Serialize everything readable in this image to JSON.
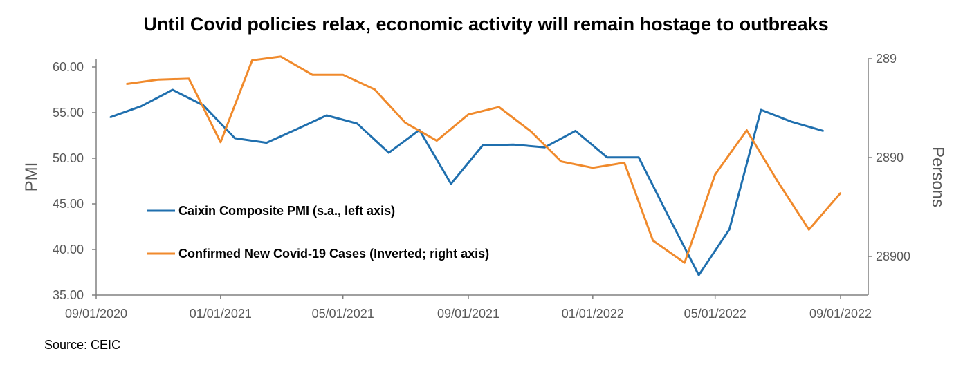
{
  "title": "Until Covid policies relax, economic activity will remain hostage to outbreaks",
  "source": "Source: CEIC",
  "chart_data": {
    "type": "line",
    "title": "Until Covid policies relax, economic activity will remain hostage to outbreaks",
    "xlabel": "",
    "x_ticks": [
      "09/01/2020",
      "01/01/2021",
      "05/01/2021",
      "09/01/2021",
      "01/01/2022",
      "05/01/2022",
      "09/01/2022"
    ],
    "xlim": [
      "2020-09-01",
      "2022-09-01"
    ],
    "left_axis": {
      "label": "PMI",
      "ylim": [
        35,
        60
      ],
      "ticks": [
        "35.00",
        "40.00",
        "45.00",
        "50.00",
        "55.00",
        "60.00"
      ]
    },
    "right_axis": {
      "label": "Persons",
      "inverted": true,
      "ticks": [
        "289",
        "2890",
        "28900"
      ]
    },
    "legend_position": "center-left",
    "series": [
      {
        "name": "Caixin Composite PMI (s.a., left axis)",
        "axis": "left",
        "color": "#1F6FAE",
        "x": [
          "2020-09",
          "2020-10",
          "2020-11",
          "2020-12",
          "2021-01",
          "2021-02",
          "2021-03",
          "2021-04",
          "2021-05",
          "2021-06",
          "2021-07",
          "2021-08",
          "2021-09",
          "2021-10",
          "2021-11",
          "2021-12",
          "2022-01",
          "2022-02",
          "2022-03",
          "2022-04",
          "2022-05",
          "2022-06",
          "2022-07",
          "2022-08"
        ],
        "values": [
          54.5,
          55.7,
          57.5,
          55.8,
          52.2,
          51.7,
          53.1,
          54.7,
          53.8,
          50.6,
          53.1,
          47.2,
          51.4,
          51.5,
          51.2,
          53.0,
          50.1,
          50.1,
          43.9,
          37.2,
          42.2,
          55.3,
          54.0,
          53.0
        ]
      },
      {
        "name": "Confirmed New Covid-19 Cases (Inverted; right axis)",
        "axis": "right",
        "color": "#F08A2C",
        "x": [
          "2020-10-01",
          "2020-11-01",
          "2020-12-01",
          "2021-01-01",
          "2021-02-01",
          "2021-03-01",
          "2021-04-01",
          "2021-05-01",
          "2021-06-01",
          "2021-07-01",
          "2021-08-01",
          "2021-09-01",
          "2021-10-01",
          "2021-11-01",
          "2021-12-01",
          "2022-01-01",
          "2022-02-01",
          "2022-03-01",
          "2022-04-01",
          "2022-05-01",
          "2022-06-01",
          "2022-07-01",
          "2022-08-01",
          "2022-09-01"
        ],
        "values": [
          520,
          470,
          460,
          2020,
          300,
          275,
          420,
          420,
          590,
          1280,
          1950,
          1060,
          890,
          1560,
          3170,
          3670,
          3260,
          20000,
          33500,
          4290,
          1530,
          4980,
          15500,
          6600
        ]
      }
    ]
  }
}
